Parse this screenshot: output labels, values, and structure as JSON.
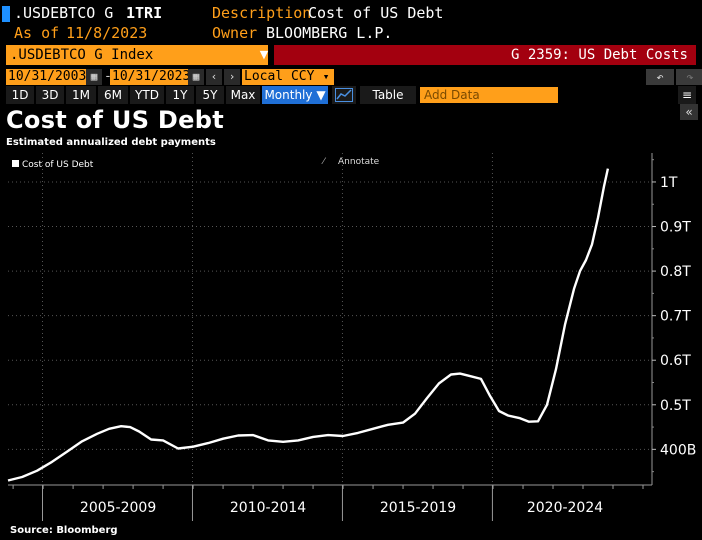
{
  "header": {
    "ticker_short": ".USDEBTCO G",
    "code": "1TRI",
    "description_label": "Description",
    "description_value": "Cost of US Debt",
    "asof_label": "As of",
    "asof_value": "11/8/2023",
    "owner_label": "Owner",
    "owner_value": "BLOOMBERG L.P."
  },
  "toolbar": {
    "ticker_full": ".USDEBTCO G Index",
    "function_label": "G 2359: US Debt Costs",
    "start_date": "10/31/2003",
    "end_date": "10/31/2023",
    "date_separator": "-",
    "currency": "Local CCY",
    "periods": [
      "1D",
      "3D",
      "1M",
      "6M",
      "YTD",
      "1Y",
      "5Y",
      "Max"
    ],
    "frequency": "Monthly",
    "table_label": "Table",
    "add_data_placeholder": "Add Data",
    "calendar_icon": "calendar-icon",
    "back_icon": "undo-icon",
    "forward_icon": "redo-icon",
    "chart_icon": "line-chart-icon"
  },
  "colors": {
    "accent": "#ff9f1a",
    "brand_red": "#a3000f",
    "active_blue": "#1f6fd6",
    "line": "#ffffff"
  },
  "chart_data": {
    "type": "line",
    "title": "Cost of US Debt",
    "subtitle": "Estimated annualized debt payments",
    "legend": [
      "Cost of US Debt"
    ],
    "legend_position": "top-left",
    "annotate_label": "Annotate",
    "source": "Source: Bloomberg",
    "x_tick_labels": [
      "2005-2009",
      "2010-2014",
      "2015-2019",
      "2020-2024"
    ],
    "y_tick_labels": [
      "400B",
      "0.5T",
      "0.6T",
      "0.7T",
      "0.8T",
      "0.9T",
      "1T"
    ],
    "y_ticks": [
      400,
      500,
      600,
      700,
      800,
      900,
      1000
    ],
    "ylim": [
      320,
      1065
    ],
    "xlim": [
      2003.83,
      2025.3
    ],
    "grid": true,
    "series": [
      {
        "name": "Cost of US Debt",
        "x": [
          2003.83,
          2004.3,
          2004.8,
          2005.3,
          2005.8,
          2006.3,
          2006.8,
          2007.2,
          2007.6,
          2007.9,
          2008.2,
          2008.6,
          2009.0,
          2009.5,
          2010.0,
          2010.5,
          2011.0,
          2011.5,
          2012.0,
          2012.5,
          2013.0,
          2013.5,
          2014.0,
          2014.5,
          2015.0,
          2015.5,
          2016.0,
          2016.5,
          2017.0,
          2017.4,
          2017.8,
          2018.2,
          2018.6,
          2018.9,
          2019.2,
          2019.6,
          2019.9,
          2020.2,
          2020.5,
          2020.9,
          2021.2,
          2021.5,
          2021.8,
          2022.1,
          2022.4,
          2022.7,
          2022.9,
          2023.1,
          2023.3,
          2023.5,
          2023.7,
          2023.83
        ],
        "values": [
          330,
          338,
          352,
          372,
          395,
          418,
          435,
          446,
          452,
          450,
          440,
          422,
          420,
          402,
          406,
          414,
          424,
          431,
          432,
          420,
          417,
          420,
          428,
          432,
          430,
          437,
          446,
          455,
          460,
          480,
          515,
          548,
          568,
          570,
          565,
          558,
          520,
          486,
          476,
          470,
          462,
          463,
          500,
          580,
          680,
          760,
          800,
          825,
          860,
          920,
          990,
          1030
        ]
      }
    ]
  }
}
